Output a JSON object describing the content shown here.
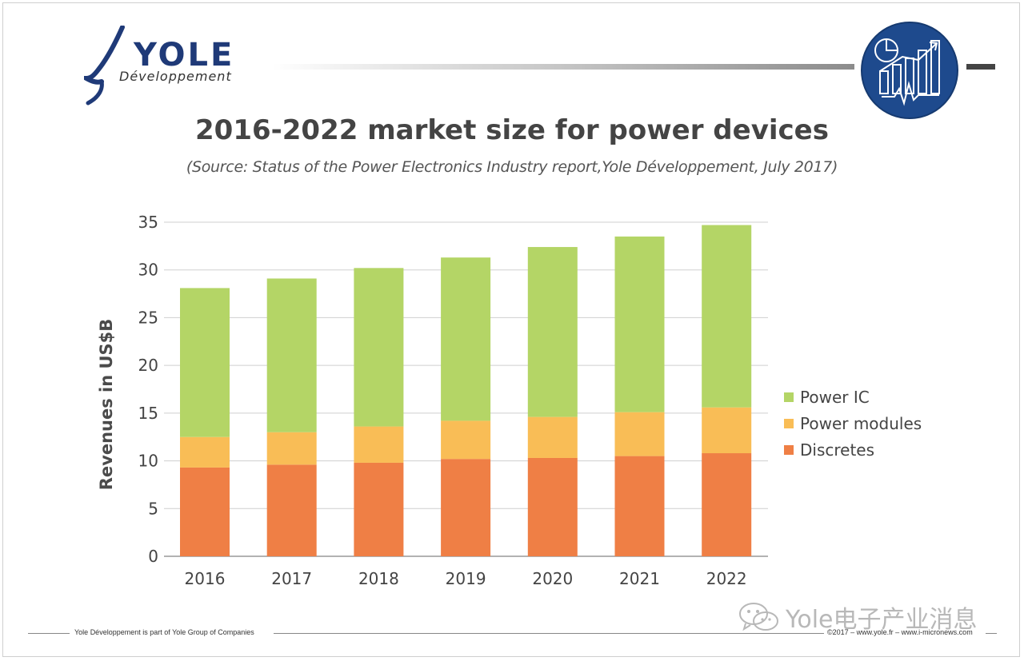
{
  "brand": {
    "logo_name": "YOLE",
    "logo_sub": "Développement",
    "primary_color": "#1f3a78",
    "badge_color": "#1e4a8d"
  },
  "header": {
    "title": "2016-2022 market size for power devices",
    "subtitle": "(Source: Status of the Power Electronics Industry report,Yole Développement, July 2017)"
  },
  "chart_data": {
    "type": "bar",
    "stacked": true,
    "categories": [
      "2016",
      "2017",
      "2018",
      "2019",
      "2020",
      "2021",
      "2022"
    ],
    "series": [
      {
        "name": "Discretes",
        "color": "#ef7f45",
        "values": [
          9.3,
          9.6,
          9.8,
          10.2,
          10.3,
          10.5,
          10.8
        ]
      },
      {
        "name": "Power modules",
        "color": "#f9bd56",
        "values": [
          3.2,
          3.4,
          3.8,
          4.0,
          4.3,
          4.6,
          4.8
        ]
      },
      {
        "name": "Power IC",
        "color": "#b4d566",
        "values": [
          15.6,
          16.1,
          16.6,
          17.1,
          17.8,
          18.4,
          19.1
        ]
      }
    ],
    "ylabel": "Revenues in US$B",
    "xlabel": "",
    "ylim": [
      0,
      35
    ],
    "yticks": [
      0,
      5,
      10,
      15,
      20,
      25,
      30,
      35
    ],
    "grid": true,
    "legend_position": "right",
    "legend_order": [
      "Power IC",
      "Power modules",
      "Discretes"
    ]
  },
  "footer": {
    "left": "Yole Développement is part of Yole Group of Companies",
    "right": "©2017 – www.yole.fr – www.i-micronews.com"
  },
  "watermark": {
    "text": "Yole电子产业消息",
    "icon": "wechat-icon"
  }
}
